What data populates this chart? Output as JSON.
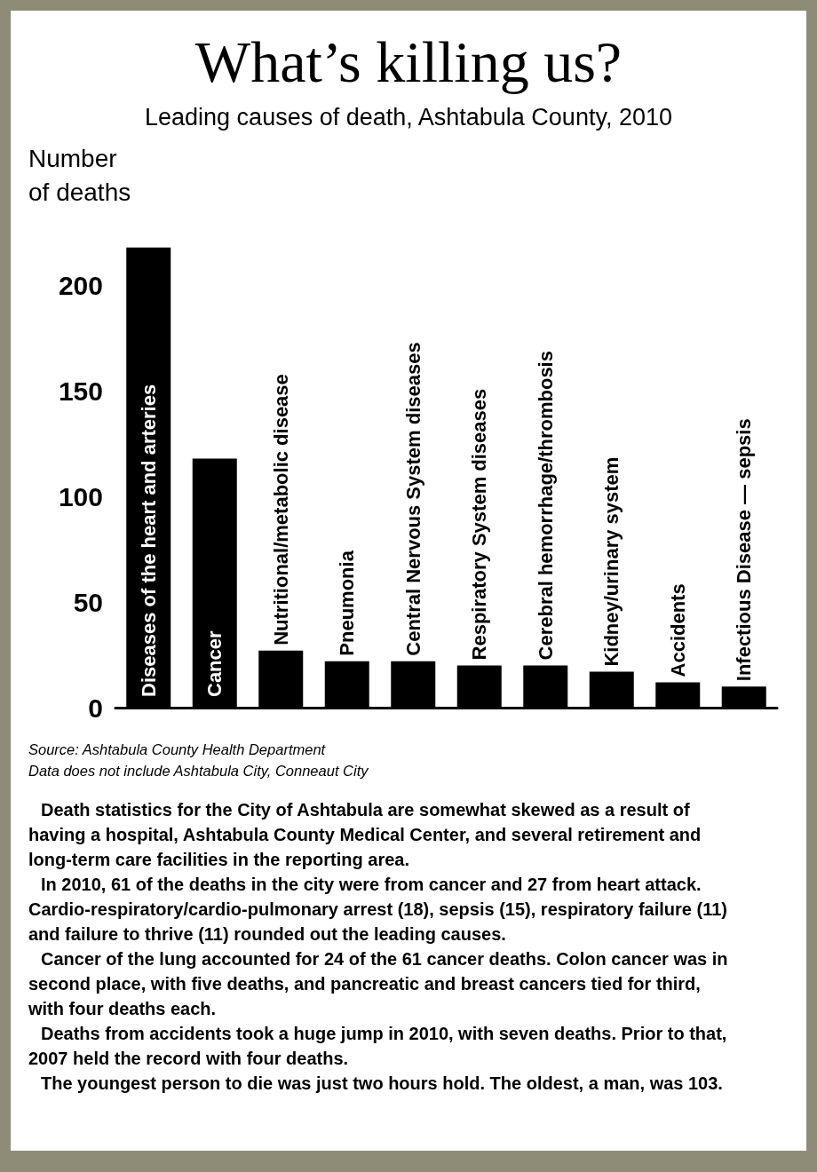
{
  "chart_data": {
    "type": "bar",
    "title": "What’s killing us?",
    "subtitle": "Leading causes of death, Ashtabula County, 2010",
    "ylabel": "Number of deaths",
    "categories": [
      "Diseases of the heart and arteries",
      "Cancer",
      "Nutritional/metabolic disease",
      "Pneumonia",
      "Central Nervous System diseases",
      "Respiratory System diseases",
      "Cerebral hemorrhage/thrombosis",
      "Kidney/urinary system",
      "Accidents",
      "Infectious Disease — sepsis"
    ],
    "values": [
      218,
      118,
      27,
      22,
      22,
      20,
      20,
      17,
      12,
      10
    ],
    "color": "#000000",
    "ylim": [
      0,
      220
    ],
    "yticks": [
      0,
      50,
      100,
      150,
      200
    ],
    "annotations": [
      "Source: Ashtabula County Health Department",
      "Data does not include Ashtabula City, Conneaut City",
      "Death statistics for the City of Ashtabula are somewhat skewed as a result of having a hospital, Ashtabula County Medical Center, and several retirement and long-term care facilities in the reporting area.",
      "In 2010, 61 of the deaths in the city were from cancer and 27 from heart attack. Cardio-respiratory/cardio-pulmonary arrest (18), sepsis (15), respiratory failure (11) and failure to thrive (11) rounded out the leading causes.",
      "Cancer of the lung accounted for 24 of the 61 cancer deaths. Colon cancer was in second place, with five deaths, and pancreatic and breast cancers tied for third, with four deaths each.",
      "Deaths from accidents took a huge jump in 2010, with seven deaths. Prior to that, 2007 held the record with four deaths.",
      "The youngest person to die was just two hours hold. The oldest, a man, was 103."
    ]
  }
}
